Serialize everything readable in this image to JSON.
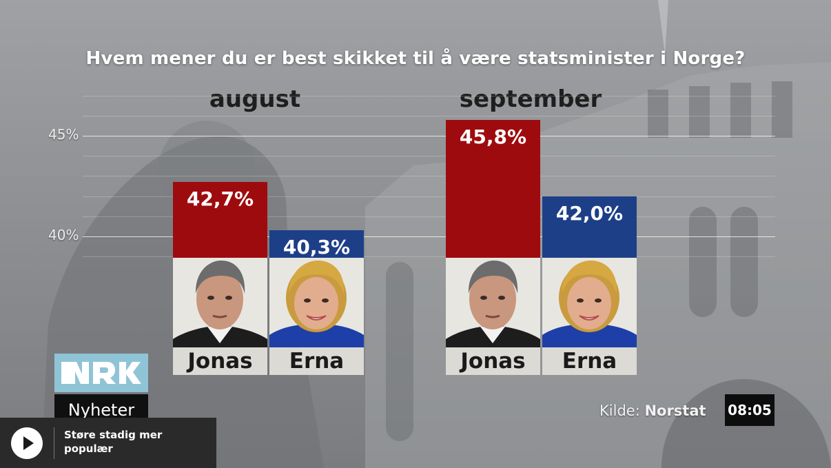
{
  "chart_data": {
    "type": "bar",
    "title": "Hvem mener du er best skikket til å være statsminister i Norge?",
    "xlabel": "",
    "ylabel": "",
    "yticks": [
      "40%",
      "45%"
    ],
    "ytick_values": [
      40,
      45
    ],
    "ylim": [
      36.7,
      47.5
    ],
    "grid": true,
    "groups": [
      {
        "name": "august",
        "bars": [
          {
            "name": "Jonas",
            "value": 42.7,
            "label": "42,7%",
            "color": "#9e0b0e"
          },
          {
            "name": "Erna",
            "value": 40.3,
            "label": "40,3%",
            "color": "#1d3f87"
          }
        ]
      },
      {
        "name": "september",
        "bars": [
          {
            "name": "Jonas",
            "value": 45.8,
            "label": "45,8%",
            "color": "#9e0b0e"
          },
          {
            "name": "Erna",
            "value": 42.0,
            "label": "42,0%",
            "color": "#1d3f87"
          }
        ]
      }
    ]
  },
  "branding": {
    "channel": "Nyheter",
    "logo_icon": "nrk-logo"
  },
  "source": {
    "prefix": "Kilde:",
    "name": "Norstat"
  },
  "clock": "08:05",
  "player": {
    "play_icon": "play-icon",
    "caption": "Støre stadig mer populær"
  }
}
